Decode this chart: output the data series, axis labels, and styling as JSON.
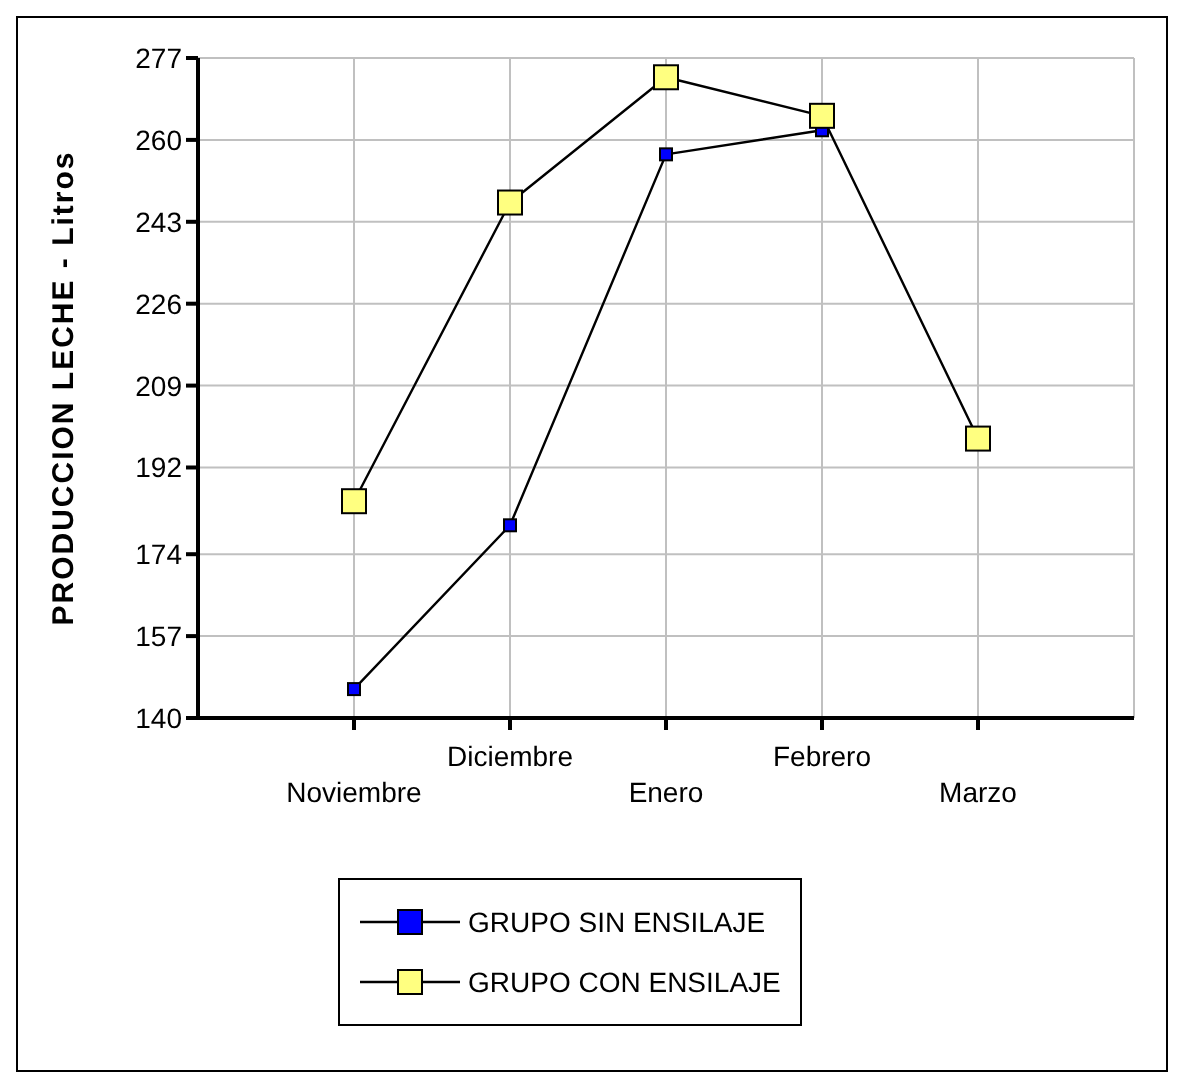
{
  "chart_data": {
    "type": "line",
    "ylabel": "PRODUCCION LECHE - Litros",
    "categories": [
      "Noviembre",
      "Diciembre",
      "Enero",
      "Febrero",
      "Marzo"
    ],
    "series": [
      {
        "name": "GRUPO SIN ENSILAJE",
        "color": "#0000ff",
        "values": [
          146,
          180,
          257,
          262,
          null
        ]
      },
      {
        "name": "GRUPO CON ENSILAJE",
        "color": "#ffff80",
        "values": [
          185,
          247,
          273,
          265,
          198
        ]
      }
    ],
    "ylim": [
      140,
      277
    ],
    "yticks": [
      140,
      157,
      174,
      192,
      209,
      226,
      243,
      260,
      277
    ],
    "grid": true,
    "legend": "bottom",
    "marker": "square",
    "line_style": "solid"
  }
}
